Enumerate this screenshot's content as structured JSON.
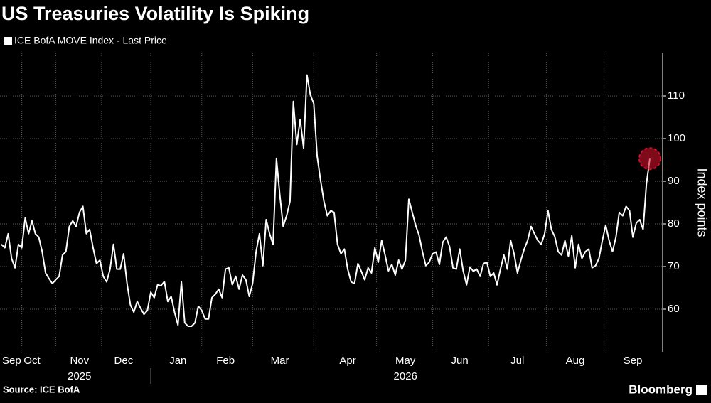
{
  "chart_data": {
    "type": "line",
    "title": "US Treasuries Volatility Is Spiking",
    "y_label": "Index points",
    "source": "Source: ICE BofA",
    "brand": "Bloomberg",
    "year_labels": [
      "2025",
      "2026"
    ],
    "categories": [
      null,
      null,
      null,
      "Sep",
      null,
      null,
      null,
      null,
      null,
      "Oct",
      null,
      null,
      null,
      null,
      null,
      null,
      null,
      null,
      null,
      null,
      null,
      null,
      null,
      "Nov",
      null,
      null,
      null,
      null,
      null,
      null,
      null,
      null,
      null,
      null,
      null,
      null,
      "Dec",
      null,
      null,
      null,
      null,
      null,
      null,
      null,
      null,
      null,
      null,
      null,
      null,
      null,
      null,
      null,
      "Jan",
      null,
      null,
      null,
      null,
      null,
      null,
      null,
      null,
      null,
      null,
      null,
      null,
      null,
      "Feb",
      null,
      null,
      null,
      null,
      null,
      null,
      null,
      null,
      null,
      null,
      null,
      null,
      null,
      null,
      null,
      "Mar",
      null,
      null,
      null,
      null,
      null,
      null,
      null,
      null,
      null,
      null,
      null,
      null,
      null,
      null,
      null,
      null,
      null,
      null,
      null,
      "Apr",
      null,
      null,
      null,
      null,
      null,
      null,
      null,
      null,
      null,
      null,
      null,
      null,
      null,
      null,
      null,
      null,
      "May",
      null,
      null,
      null,
      null,
      null,
      null,
      null,
      null,
      null,
      null,
      null,
      null,
      null,
      null,
      null,
      "Jun",
      null,
      null,
      null,
      null,
      null,
      null,
      null,
      null,
      null,
      null,
      null,
      null,
      null,
      null,
      null,
      null,
      "Jul",
      null,
      null,
      null,
      null,
      null,
      null,
      null,
      null,
      null,
      null,
      null,
      null,
      null,
      null,
      null,
      null,
      "Aug",
      null,
      null,
      null,
      null,
      null,
      null,
      null,
      null,
      null,
      null,
      null,
      null,
      null,
      null,
      null,
      null,
      "Sep",
      null,
      null,
      null,
      null,
      null
    ],
    "series": [
      {
        "name": "ICE BofA MOVE Index - Last Price",
        "color": "#ffffff",
        "values": [
          75.2,
          74.4,
          77.7,
          71.9,
          69.7,
          75.2,
          74.4,
          81.4,
          77.7,
          80.7,
          77.7,
          76.9,
          73.5,
          68.5,
          67.2,
          66,
          66.9,
          67.7,
          72.7,
          73.5,
          79.4,
          80.7,
          79.4,
          82.7,
          84.1,
          77.7,
          78.7,
          74.4,
          70.7,
          71.5,
          67.7,
          66.4,
          69.4,
          75.2,
          69.4,
          69.4,
          73,
          66,
          61,
          59.3,
          61.8,
          60.2,
          58.8,
          59.7,
          64,
          62.7,
          65.7,
          65.5,
          66.5,
          61.8,
          63,
          59.3,
          56.3,
          66.4,
          56.8,
          56,
          56,
          56.8,
          60.7,
          59.7,
          57.7,
          57.7,
          62.7,
          63.5,
          64.7,
          62.7,
          69.4,
          69.7,
          65.7,
          67.7,
          64.7,
          68,
          66.9,
          63,
          66,
          73.4,
          77.7,
          70.2,
          81,
          77.7,
          75.2,
          95.3,
          86.9,
          79.4,
          81.9,
          85.3,
          108.7,
          98.6,
          104.5,
          97.8,
          114.9,
          110.3,
          108.2,
          95.8,
          90.3,
          85.3,
          81.9,
          83.1,
          82.7,
          75.2,
          73,
          74.1,
          69.4,
          66.4,
          66,
          70.7,
          68.9,
          66.9,
          69.7,
          68.5,
          74.4,
          71,
          76.1,
          72.7,
          69,
          70.5,
          68,
          71.5,
          69.4,
          71.5,
          85.8,
          82.7,
          79.7,
          77.4,
          73.5,
          70.2,
          71,
          73,
          73.4,
          70.5,
          75.7,
          76.9,
          74.7,
          69.7,
          69.4,
          74.1,
          69,
          65.7,
          69.9,
          68.9,
          69.4,
          67.7,
          70.7,
          71,
          67.7,
          68.5,
          65.7,
          69.4,
          72.7,
          69.4,
          76.1,
          73,
          68.5,
          71.5,
          74.1,
          76.1,
          79.4,
          77.7,
          76.1,
          75.2,
          77.7,
          83.1,
          78.7,
          77,
          73.5,
          72.7,
          76.1,
          72.4,
          77.2,
          69.7,
          75.2,
          71.9,
          73.5,
          74.1,
          69.7,
          70.2,
          71.9,
          76.1,
          79.7,
          76.1,
          73.5,
          76.9,
          82.7,
          81.9,
          84.1,
          83.1,
          76.9,
          80.2,
          81,
          78.7,
          89.4,
          95.3
        ]
      }
    ],
    "ylim": [
      50,
      120
    ],
    "yticks": [
      60,
      70,
      80,
      90,
      100,
      110
    ],
    "grid": true,
    "highlight_last": true,
    "highlight_color": "#d4102c"
  }
}
